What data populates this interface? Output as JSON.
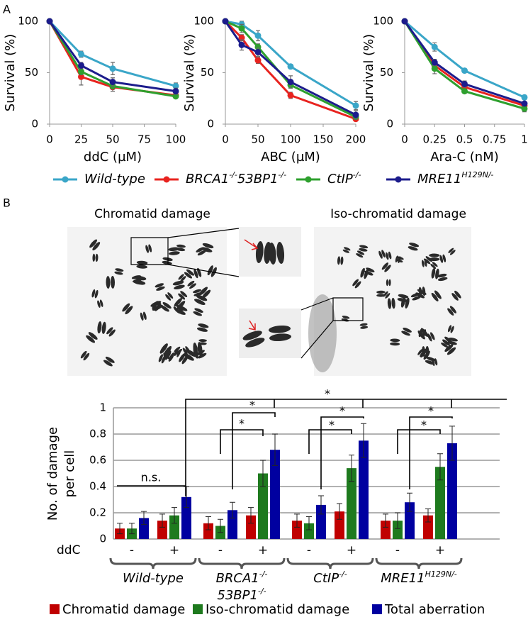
{
  "figure": {
    "panels": [
      "A",
      "B"
    ],
    "images": [
      "Chromatid damage",
      "Iso-chromatid damage"
    ]
  },
  "legend": [
    {
      "name": [
        "Wild-type"
      ],
      "color": "#3aa6c8"
    },
    {
      "name": [
        "BRCA1",
        "-/-",
        "53BP1",
        "-/-"
      ],
      "color": "#e8231f"
    },
    {
      "name": [
        "CtIP",
        "-/-"
      ],
      "color": "#2ea02e"
    },
    {
      "name": [
        "MRE11",
        "H129N/-"
      ],
      "color": "#1c1c8c"
    }
  ],
  "chart_data": [
    {
      "type": "line",
      "x_label": "ddC (µM)",
      "y_label": "Survival (%)",
      "x": [
        0,
        25,
        50,
        100
      ],
      "xlim": [
        0,
        100
      ],
      "xticks": [
        0,
        25,
        50,
        75,
        100
      ],
      "ylim": [
        0,
        100
      ],
      "yticks": [
        0,
        50,
        100
      ],
      "series": [
        {
          "values": [
            100,
            68,
            54,
            37
          ],
          "errors": [
            0,
            3,
            6,
            3
          ]
        },
        {
          "values": [
            100,
            46,
            36,
            28
          ],
          "errors": [
            0,
            8,
            4,
            2
          ]
        },
        {
          "values": [
            100,
            51,
            37,
            27
          ],
          "errors": [
            0,
            3,
            3,
            2
          ]
        },
        {
          "values": [
            100,
            57,
            41,
            32
          ],
          "errors": [
            0,
            3,
            4,
            3
          ]
        }
      ]
    },
    {
      "type": "line",
      "x_label": "ABC (µM)",
      "y_label": "Survival (%)",
      "x": [
        0,
        25,
        50,
        100,
        200
      ],
      "xlim": [
        0,
        200
      ],
      "xticks": [
        0,
        50,
        100,
        150,
        200
      ],
      "ylim": [
        0,
        100
      ],
      "yticks": [
        0,
        50,
        100
      ],
      "series": [
        {
          "values": [
            100,
            97,
            86,
            56,
            18
          ],
          "errors": [
            0,
            3,
            5,
            2,
            4
          ]
        },
        {
          "values": [
            100,
            84,
            62,
            28,
            5
          ],
          "errors": [
            0,
            3,
            3,
            3,
            2
          ]
        },
        {
          "values": [
            100,
            93,
            75,
            38,
            7
          ],
          "errors": [
            0,
            4,
            3,
            3,
            2
          ]
        },
        {
          "values": [
            100,
            77,
            70,
            41,
            9
          ],
          "errors": [
            0,
            5,
            4,
            6,
            4
          ]
        }
      ]
    },
    {
      "type": "line",
      "x_label": "Ara-C (nM)",
      "y_label": "Survival (%)",
      "x": [
        0,
        0.25,
        0.5,
        1
      ],
      "xlim": [
        0,
        1
      ],
      "xticks": [
        0,
        0.25,
        0.5,
        0.75,
        1
      ],
      "ylim": [
        0,
        100
      ],
      "yticks": [
        0,
        50,
        100
      ],
      "series": [
        {
          "values": [
            100,
            75,
            52,
            26
          ],
          "errors": [
            0,
            4,
            2,
            2
          ]
        },
        {
          "values": [
            100,
            57,
            36,
            18
          ],
          "errors": [
            0,
            3,
            2,
            2
          ]
        },
        {
          "values": [
            100,
            54,
            32,
            15
          ],
          "errors": [
            0,
            5,
            2,
            3
          ]
        },
        {
          "values": [
            100,
            60,
            39,
            20
          ],
          "errors": [
            0,
            3,
            3,
            2
          ]
        }
      ]
    },
    {
      "type": "bar",
      "y_label": [
        "No. of damage",
        "per cell"
      ],
      "row_label": "ddC",
      "categories": [
        "-",
        "+",
        "-",
        "+",
        "-",
        "+",
        "-",
        "+"
      ],
      "groups": [
        [
          [
            "Wild-type"
          ]
        ],
        [
          [
            "BRCA1",
            "-/-"
          ],
          [
            "53BP1",
            "-/-"
          ]
        ],
        [
          [
            "CtIP",
            "-/-"
          ]
        ],
        [
          [
            "MRE11",
            "H129N/-"
          ]
        ]
      ],
      "ylim": [
        0,
        1
      ],
      "yticks": [
        0,
        0.2,
        0.4,
        0.6,
        0.8,
        1
      ],
      "grid": true,
      "series": [
        {
          "name": "Chromatid damage",
          "color": "#c00000",
          "values": [
            0.08,
            0.14,
            0.12,
            0.18,
            0.14,
            0.21,
            0.14,
            0.18
          ],
          "errors": [
            0.04,
            0.05,
            0.05,
            0.06,
            0.05,
            0.06,
            0.05,
            0.05
          ]
        },
        {
          "name": "Iso-chromatid damage",
          "color": "#1e7a1e",
          "values": [
            0.08,
            0.18,
            0.1,
            0.5,
            0.12,
            0.54,
            0.14,
            0.55
          ],
          "errors": [
            0.04,
            0.06,
            0.05,
            0.1,
            0.05,
            0.1,
            0.06,
            0.1
          ]
        },
        {
          "name": "Total aberration",
          "color": "#0000a0",
          "values": [
            0.16,
            0.32,
            0.22,
            0.68,
            0.26,
            0.75,
            0.28,
            0.73
          ],
          "errors": [
            0.05,
            0.08,
            0.06,
            0.12,
            0.07,
            0.13,
            0.07,
            0.13
          ]
        }
      ],
      "annotations": [
        "n.s.",
        "*",
        "*",
        "*",
        "*",
        "*",
        "*",
        "*"
      ]
    }
  ]
}
